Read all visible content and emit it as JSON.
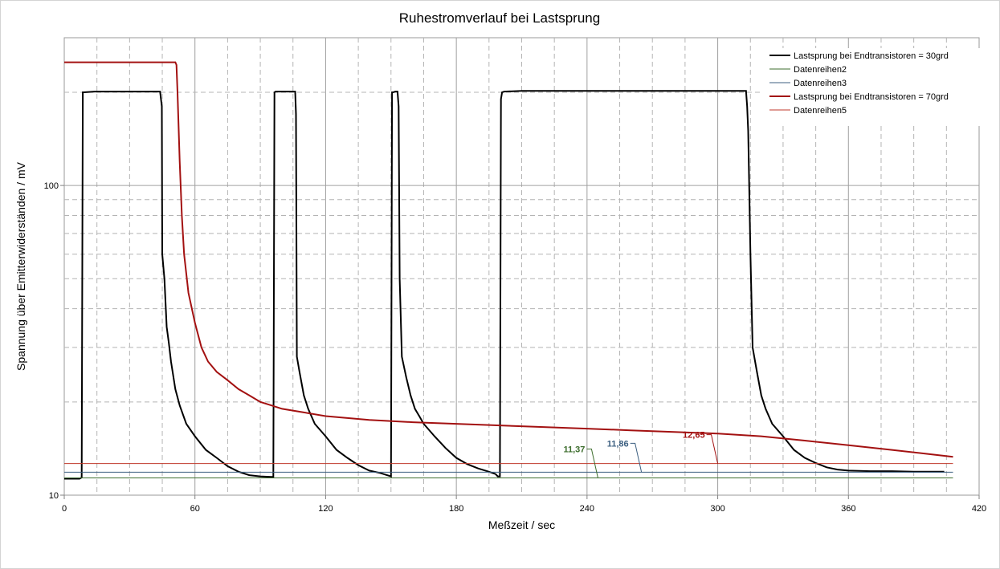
{
  "chart_data": {
    "type": "line",
    "title": "Ruhestromverlauf bei Lastsprung",
    "xlabel": "Meßzeit / sec",
    "ylabel": "Spannung über Emitterwiderständen / mV",
    "xlim": [
      0,
      420
    ],
    "ylim": [
      10,
      300
    ],
    "y_scale": "log",
    "x_ticks": [
      0,
      60,
      120,
      180,
      240,
      300,
      360,
      420
    ],
    "x_tick_labels": [
      "0",
      "60",
      "120",
      "180",
      "240",
      "300",
      "360",
      "420"
    ],
    "y_labeled_ticks": [
      10,
      100
    ],
    "y_tick_labels": [
      "10",
      "100"
    ],
    "grid": true,
    "legend_position": "top-right",
    "series": [
      {
        "name": "Lastsprung bei Endtransistoren = 30grd",
        "color": "#000000",
        "width": 2,
        "points": [
          [
            0,
            11.3
          ],
          [
            7,
            11.3
          ],
          [
            8,
            11.4
          ],
          [
            8.5,
            200
          ],
          [
            9,
            200
          ],
          [
            14,
            201
          ],
          [
            44,
            201
          ],
          [
            44.8,
            180
          ],
          [
            45,
            60
          ],
          [
            46,
            50
          ],
          [
            47,
            35
          ],
          [
            48,
            31
          ],
          [
            49,
            27
          ],
          [
            51,
            22
          ],
          [
            53,
            19.5
          ],
          [
            56,
            17
          ],
          [
            60,
            15.5
          ],
          [
            65,
            14
          ],
          [
            70,
            13.2
          ],
          [
            75,
            12.4
          ],
          [
            80,
            11.9
          ],
          [
            85,
            11.6
          ],
          [
            90,
            11.5
          ],
          [
            95,
            11.45
          ],
          [
            96,
            11.45
          ],
          [
            96.5,
            200
          ],
          [
            97,
            201
          ],
          [
            106,
            201
          ],
          [
            106.4,
            170
          ],
          [
            106.8,
            28
          ],
          [
            108,
            25
          ],
          [
            110,
            21
          ],
          [
            112,
            19
          ],
          [
            115,
            17
          ],
          [
            120,
            15.5
          ],
          [
            125,
            14
          ],
          [
            130,
            13.2
          ],
          [
            135,
            12.5
          ],
          [
            140,
            12
          ],
          [
            145,
            11.8
          ],
          [
            150,
            11.5
          ],
          [
            150.5,
            200
          ],
          [
            151,
            200
          ],
          [
            152,
            201
          ],
          [
            153,
            201
          ],
          [
            153.5,
            180
          ],
          [
            154,
            50
          ],
          [
            155,
            28
          ],
          [
            157,
            24
          ],
          [
            159,
            21
          ],
          [
            161,
            19
          ],
          [
            163,
            18
          ],
          [
            165,
            17
          ],
          [
            170,
            15.5
          ],
          [
            175,
            14.2
          ],
          [
            180,
            13.2
          ],
          [
            185,
            12.6
          ],
          [
            190,
            12.2
          ],
          [
            195,
            11.9
          ],
          [
            198,
            11.7
          ],
          [
            199,
            11.5
          ],
          [
            200,
            11.5
          ],
          [
            200.5,
            190
          ],
          [
            201,
            200
          ],
          [
            202,
            201
          ],
          [
            210,
            202
          ],
          [
            313,
            202
          ],
          [
            313.5,
            180
          ],
          [
            314,
            150
          ],
          [
            315,
            60
          ],
          [
            316,
            30
          ],
          [
            318,
            25
          ],
          [
            320,
            21
          ],
          [
            322,
            19
          ],
          [
            325,
            17
          ],
          [
            330,
            15.5
          ],
          [
            335,
            14
          ],
          [
            340,
            13.2
          ],
          [
            345,
            12.7
          ],
          [
            350,
            12.3
          ],
          [
            355,
            12.1
          ],
          [
            360,
            12
          ],
          [
            370,
            11.95
          ],
          [
            380,
            11.95
          ],
          [
            390,
            11.9
          ],
          [
            400,
            11.9
          ],
          [
            404,
            11.9
          ]
        ]
      },
      {
        "name": "Datenreihen2",
        "color": "#3e6e2e",
        "width": 1,
        "points": [
          [
            0,
            11.37
          ],
          [
            408,
            11.37
          ]
        ]
      },
      {
        "name": "Datenreihen3",
        "color": "#3c5f80",
        "width": 1,
        "points": [
          [
            0,
            11.86
          ],
          [
            408,
            11.86
          ]
        ]
      },
      {
        "name": "Lastsprung bei Endtransistoren = 70grd",
        "color": "#a31111",
        "width": 2,
        "points": [
          [
            0,
            250
          ],
          [
            51,
            250
          ],
          [
            51.5,
            245
          ],
          [
            52,
            200
          ],
          [
            53,
            120
          ],
          [
            54,
            80
          ],
          [
            55,
            60
          ],
          [
            57,
            45
          ],
          [
            60,
            36
          ],
          [
            63,
            30
          ],
          [
            66,
            27
          ],
          [
            70,
            25
          ],
          [
            75,
            23.5
          ],
          [
            80,
            22
          ],
          [
            85,
            21
          ],
          [
            90,
            20
          ],
          [
            95,
            19.5
          ],
          [
            100,
            19
          ],
          [
            110,
            18.5
          ],
          [
            120,
            18
          ],
          [
            140,
            17.5
          ],
          [
            160,
            17.2
          ],
          [
            180,
            17
          ],
          [
            200,
            16.8
          ],
          [
            220,
            16.6
          ],
          [
            240,
            16.4
          ],
          [
            260,
            16.2
          ],
          [
            280,
            16
          ],
          [
            300,
            15.8
          ],
          [
            320,
            15.5
          ],
          [
            340,
            15
          ],
          [
            360,
            14.5
          ],
          [
            380,
            14
          ],
          [
            400,
            13.5
          ],
          [
            408,
            13.3
          ]
        ]
      },
      {
        "name": "Datenreihen5",
        "color": "#c0392b",
        "width": 1,
        "points": [
          [
            0,
            12.65
          ],
          [
            408,
            12.65
          ]
        ]
      }
    ],
    "annotations": [
      {
        "text": "11,37",
        "color": "#3e6e2e",
        "x": 245,
        "y": 11.37
      },
      {
        "text": "11,86",
        "color": "#3c5f80",
        "x": 265,
        "y": 11.86
      },
      {
        "text": "12,65",
        "color": "#a31111",
        "x": 300,
        "y": 12.65
      }
    ]
  }
}
